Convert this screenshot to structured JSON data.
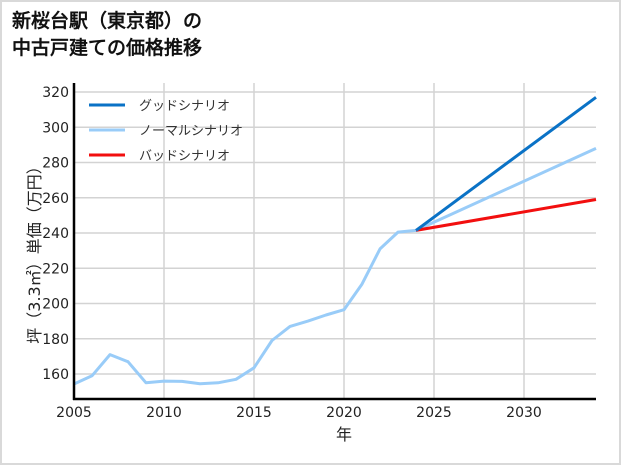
{
  "title_line1": "新桜台駅（東京都）の",
  "title_line2": "中古戸建ての価格推移",
  "chart_data": {
    "type": "line",
    "title": "新桜台駅（東京都）の中古戸建ての価格推移",
    "xlabel": "年",
    "ylabel": "坪（3.3㎡）単価（万円）",
    "xlim": [
      2005,
      2034
    ],
    "ylim": [
      145,
      327
    ],
    "x_ticks": [
      2005,
      2010,
      2015,
      2020,
      2025,
      2030
    ],
    "y_ticks": [
      160,
      180,
      200,
      220,
      240,
      260,
      280,
      300,
      320
    ],
    "grid": true,
    "legend_position": "upper left",
    "series": [
      {
        "name": "グッドシナリオ",
        "color": "#0a72c6",
        "x": [
          2024,
          2034
        ],
        "values": [
          241.5,
          317
        ]
      },
      {
        "name": "ノーマルシナリオ",
        "color": "#99ccf8",
        "x": [
          2005,
          2006,
          2007,
          2008,
          2009,
          2010,
          2011,
          2012,
          2013,
          2014,
          2015,
          2016,
          2017,
          2018,
          2019,
          2020,
          2021,
          2022,
          2023,
          2024,
          2034
        ],
        "values": [
          154.3,
          159,
          171,
          167,
          155,
          156,
          155.8,
          154.5,
          155,
          157,
          163.5,
          179,
          187,
          190,
          193.5,
          196.5,
          211,
          231,
          240.5,
          241.5,
          288
        ]
      },
      {
        "name": "バッドシナリオ",
        "color": "#f20f0f",
        "x": [
          2024,
          2034
        ],
        "values": [
          241.5,
          259
        ]
      }
    ]
  }
}
